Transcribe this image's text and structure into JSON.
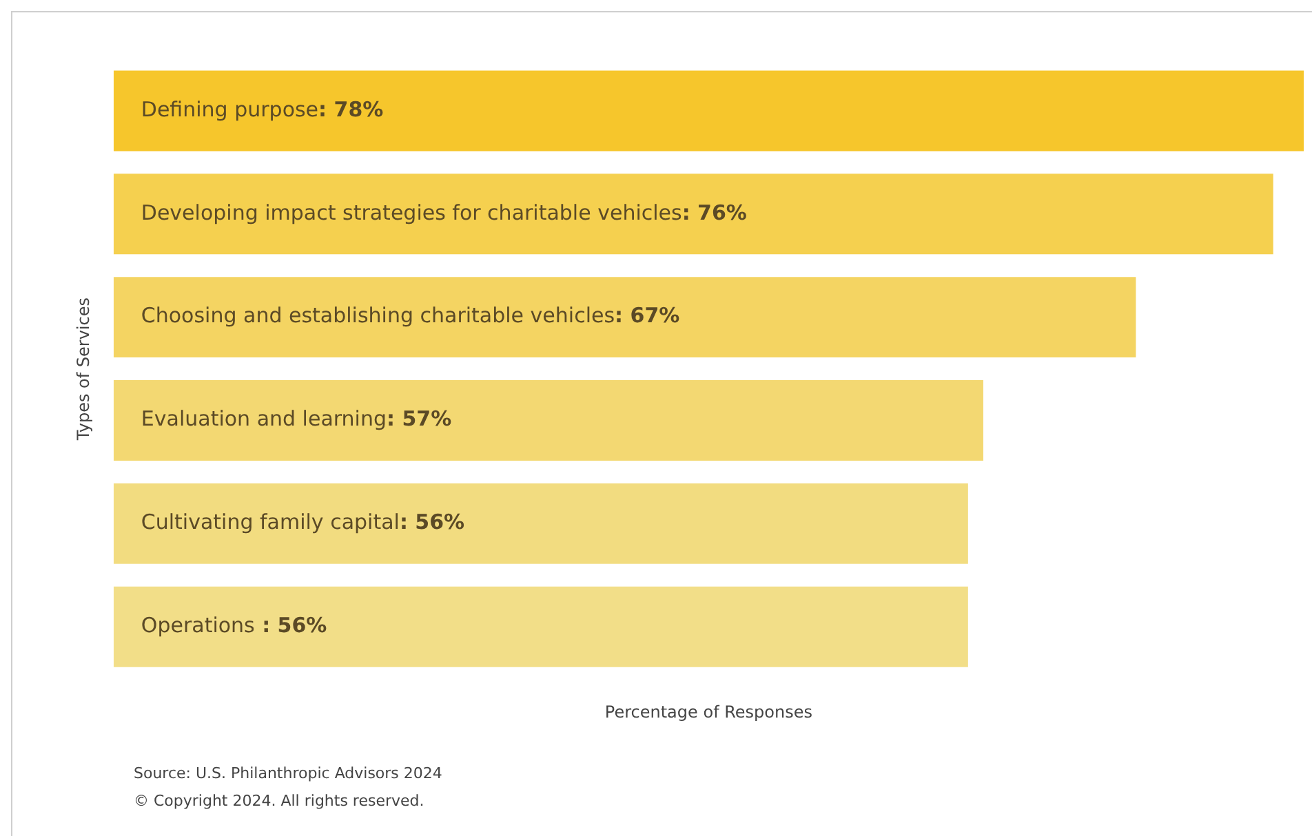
{
  "chart_data": {
    "type": "bar",
    "orientation": "horizontal",
    "xlabel": "Percentage of Responses",
    "ylabel": "Types of Services",
    "categories": [
      "Defining purpose",
      "Developing impact strategies for charitable vehicles",
      "Choosing and establishing charitable vehicles",
      "Evaluation and learning",
      "Cultivating family capital",
      "Operations"
    ],
    "values": [
      78,
      76,
      67,
      57,
      56,
      56
    ],
    "value_labels": [
      ": 78%",
      ": 76%",
      ": 67%",
      ": 57%",
      ": 56%",
      " : 56%"
    ],
    "colors": [
      "#f6c62c",
      "#f5d04f",
      "#f4d462",
      "#f3d872",
      "#f2dc80",
      "#f2de88"
    ],
    "xlim": [
      0,
      78
    ],
    "tick_labels": false,
    "legend": false,
    "annotations": [
      "Source: U.S. Philanthropic Advisors 2024",
      "© Copyright 2024. All rights reserved."
    ]
  }
}
